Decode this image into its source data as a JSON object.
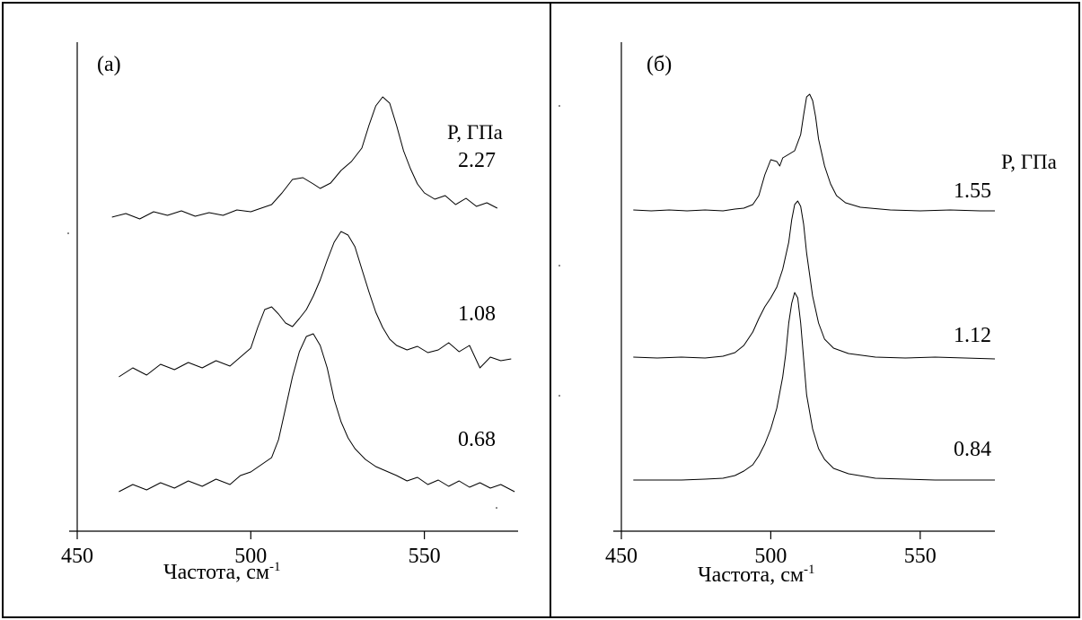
{
  "chart_data": [
    {
      "type": "line",
      "panel_label": "(а)",
      "xlabel": "Частота, см",
      "xlabel_sup": "-1",
      "x_ticks": [
        450,
        500,
        550
      ],
      "xlim": [
        450,
        577
      ],
      "legend_title": "P, ГПа",
      "series": [
        {
          "name": "2.27",
          "points": [
            [
              460,
              242
            ],
            [
              464,
              238
            ],
            [
              468,
              244
            ],
            [
              472,
              236
            ],
            [
              476,
              240
            ],
            [
              480,
              235
            ],
            [
              484,
              241
            ],
            [
              488,
              237
            ],
            [
              492,
              240
            ],
            [
              496,
              234
            ],
            [
              500,
              236
            ],
            [
              503,
              232
            ],
            [
              506,
              228
            ],
            [
              509,
              215
            ],
            [
              512,
              200
            ],
            [
              515,
              198
            ],
            [
              518,
              205
            ],
            [
              520,
              210
            ],
            [
              523,
              204
            ],
            [
              526,
              190
            ],
            [
              529,
              180
            ],
            [
              532,
              165
            ],
            [
              534,
              140
            ],
            [
              536,
              118
            ],
            [
              538,
              108
            ],
            [
              540,
              115
            ],
            [
              542,
              140
            ],
            [
              544,
              168
            ],
            [
              546,
              188
            ],
            [
              548,
              205
            ],
            [
              550,
              215
            ],
            [
              553,
              222
            ],
            [
              556,
              218
            ],
            [
              559,
              228
            ],
            [
              562,
              221
            ],
            [
              565,
              230
            ],
            [
              568,
              226
            ],
            [
              571,
              232
            ]
          ]
        },
        {
          "name": "1.08",
          "points": [
            [
              462,
              420
            ],
            [
              466,
              410
            ],
            [
              470,
              418
            ],
            [
              474,
              406
            ],
            [
              478,
              412
            ],
            [
              482,
              404
            ],
            [
              486,
              410
            ],
            [
              490,
              402
            ],
            [
              494,
              408
            ],
            [
              497,
              398
            ],
            [
              500,
              388
            ],
            [
              502,
              365
            ],
            [
              504,
              345
            ],
            [
              506,
              342
            ],
            [
              508,
              350
            ],
            [
              510,
              360
            ],
            [
              512,
              364
            ],
            [
              514,
              355
            ],
            [
              516,
              345
            ],
            [
              518,
              330
            ],
            [
              520,
              312
            ],
            [
              522,
              290
            ],
            [
              524,
              270
            ],
            [
              526,
              258
            ],
            [
              528,
              262
            ],
            [
              530,
              275
            ],
            [
              532,
              300
            ],
            [
              534,
              325
            ],
            [
              536,
              348
            ],
            [
              538,
              365
            ],
            [
              540,
              378
            ],
            [
              542,
              385
            ],
            [
              545,
              390
            ],
            [
              548,
              386
            ],
            [
              551,
              393
            ],
            [
              554,
              390
            ],
            [
              557,
              382
            ],
            [
              560,
              392
            ],
            [
              563,
              385
            ],
            [
              566,
              410
            ],
            [
              569,
              398
            ],
            [
              572,
              402
            ],
            [
              575,
              400
            ]
          ]
        },
        {
          "name": "0.68",
          "points": [
            [
              462,
              548
            ],
            [
              466,
              540
            ],
            [
              470,
              546
            ],
            [
              474,
              538
            ],
            [
              478,
              544
            ],
            [
              482,
              536
            ],
            [
              486,
              542
            ],
            [
              490,
              534
            ],
            [
              494,
              540
            ],
            [
              497,
              530
            ],
            [
              500,
              526
            ],
            [
              503,
              518
            ],
            [
              506,
              510
            ],
            [
              508,
              490
            ],
            [
              510,
              455
            ],
            [
              512,
              420
            ],
            [
              514,
              392
            ],
            [
              516,
              375
            ],
            [
              518,
              372
            ],
            [
              520,
              385
            ],
            [
              522,
              410
            ],
            [
              524,
              445
            ],
            [
              526,
              470
            ],
            [
              528,
              488
            ],
            [
              530,
              500
            ],
            [
              533,
              512
            ],
            [
              536,
              520
            ],
            [
              539,
              525
            ],
            [
              542,
              530
            ],
            [
              545,
              536
            ],
            [
              548,
              532
            ],
            [
              551,
              540
            ],
            [
              554,
              535
            ],
            [
              557,
              542
            ],
            [
              560,
              536
            ],
            [
              563,
              543
            ],
            [
              566,
              538
            ],
            [
              569,
              544
            ],
            [
              572,
              540
            ],
            [
              576,
              548
            ]
          ]
        }
      ]
    },
    {
      "type": "line",
      "panel_label": "(б)",
      "xlabel": "Частота, см",
      "xlabel_sup": "-1",
      "x_ticks": [
        450,
        500,
        550
      ],
      "xlim": [
        450,
        575
      ],
      "legend_title": "P, ГПа",
      "series": [
        {
          "name": "1.55",
          "points": [
            [
              454,
              234
            ],
            [
              460,
              235
            ],
            [
              466,
              234
            ],
            [
              472,
              235
            ],
            [
              478,
              234
            ],
            [
              484,
              235
            ],
            [
              488,
              233
            ],
            [
              491,
              232
            ],
            [
              494,
              228
            ],
            [
              496,
              218
            ],
            [
              498,
              195
            ],
            [
              500,
              178
            ],
            [
              502,
              180
            ],
            [
              503,
              185
            ],
            [
              504,
              176
            ],
            [
              506,
              172
            ],
            [
              508,
              168
            ],
            [
              510,
              150
            ],
            [
              511,
              128
            ],
            [
              512,
              108
            ],
            [
              513,
              105
            ],
            [
              514,
              112
            ],
            [
              515,
              130
            ],
            [
              516,
              155
            ],
            [
              518,
              185
            ],
            [
              520,
              205
            ],
            [
              522,
              218
            ],
            [
              525,
              226
            ],
            [
              530,
              231
            ],
            [
              540,
              234
            ],
            [
              550,
              235
            ],
            [
              560,
              234
            ],
            [
              570,
              235
            ],
            [
              575,
              235
            ]
          ]
        },
        {
          "name": "1.12",
          "points": [
            [
              454,
              398
            ],
            [
              462,
              399
            ],
            [
              470,
              398
            ],
            [
              478,
              399
            ],
            [
              484,
              397
            ],
            [
              488,
              393
            ],
            [
              491,
              385
            ],
            [
              494,
              370
            ],
            [
              496,
              355
            ],
            [
              498,
              342
            ],
            [
              500,
              332
            ],
            [
              502,
              320
            ],
            [
              504,
              300
            ],
            [
              506,
              270
            ],
            [
              507,
              245
            ],
            [
              508,
              228
            ],
            [
              509,
              224
            ],
            [
              510,
              230
            ],
            [
              511,
              250
            ],
            [
              512,
              282
            ],
            [
              514,
              330
            ],
            [
              516,
              360
            ],
            [
              518,
              378
            ],
            [
              521,
              388
            ],
            [
              526,
              394
            ],
            [
              535,
              398
            ],
            [
              545,
              399
            ],
            [
              555,
              398
            ],
            [
              565,
              399
            ],
            [
              575,
              400
            ]
          ]
        },
        {
          "name": "0.84",
          "points": [
            [
              454,
              535
            ],
            [
              462,
              535
            ],
            [
              470,
              535
            ],
            [
              478,
              534
            ],
            [
              484,
              533
            ],
            [
              488,
              530
            ],
            [
              491,
              525
            ],
            [
              494,
              518
            ],
            [
              496,
              508
            ],
            [
              498,
              495
            ],
            [
              500,
              478
            ],
            [
              502,
              455
            ],
            [
              504,
              420
            ],
            [
              505,
              395
            ],
            [
              506,
              360
            ],
            [
              507,
              338
            ],
            [
              508,
              326
            ],
            [
              509,
              332
            ],
            [
              510,
              360
            ],
            [
              511,
              400
            ],
            [
              512,
              440
            ],
            [
              514,
              478
            ],
            [
              516,
              500
            ],
            [
              518,
              512
            ],
            [
              521,
              522
            ],
            [
              526,
              528
            ],
            [
              535,
              533
            ],
            [
              545,
              534
            ],
            [
              555,
              535
            ],
            [
              565,
              535
            ],
            [
              575,
              535
            ]
          ]
        }
      ]
    }
  ]
}
